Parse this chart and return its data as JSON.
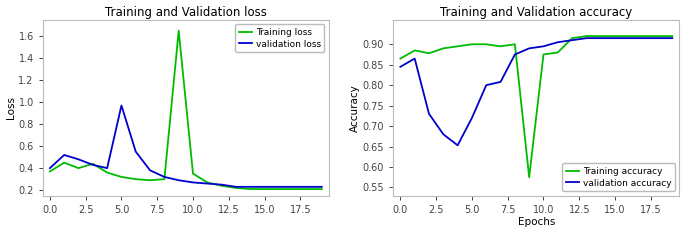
{
  "loss_title": "Training and Validation loss",
  "acc_title": "Training and Validation accuracy",
  "loss_ylabel": "Loss",
  "acc_ylabel": "Accuracy",
  "acc_xlabel": "Epochs",
  "train_loss_label": "Training loss",
  "val_loss_label": "validation loss",
  "train_acc_label": "Training accuracy",
  "val_acc_label": "validation accuracy",
  "train_loss_color": "#00bb00",
  "val_loss_color": "#0000cc",
  "train_acc_color": "#00bb00",
  "val_acc_color": "#0000cc",
  "epochs": [
    0,
    1,
    2,
    3,
    4,
    5,
    6,
    7,
    8,
    9,
    10,
    11,
    12,
    13,
    14,
    15,
    16,
    17,
    18,
    19
  ],
  "train_loss": [
    0.37,
    0.45,
    0.4,
    0.44,
    0.36,
    0.32,
    0.3,
    0.29,
    0.3,
    1.65,
    0.35,
    0.27,
    0.24,
    0.22,
    0.21,
    0.21,
    0.21,
    0.21,
    0.21,
    0.21
  ],
  "val_loss": [
    0.4,
    0.52,
    0.48,
    0.43,
    0.4,
    0.97,
    0.55,
    0.38,
    0.32,
    0.29,
    0.27,
    0.26,
    0.25,
    0.23,
    0.23,
    0.23,
    0.23,
    0.23,
    0.23,
    0.23
  ],
  "train_acc": [
    0.865,
    0.885,
    0.878,
    0.89,
    0.895,
    0.9,
    0.9,
    0.895,
    0.9,
    0.575,
    0.875,
    0.88,
    0.915,
    0.92,
    0.92,
    0.92,
    0.92,
    0.92,
    0.92,
    0.92
  ],
  "val_acc": [
    0.845,
    0.865,
    0.73,
    0.68,
    0.653,
    0.72,
    0.8,
    0.808,
    0.875,
    0.89,
    0.895,
    0.905,
    0.91,
    0.915,
    0.915,
    0.915,
    0.915,
    0.915,
    0.915,
    0.915
  ],
  "loss_ylim": [
    0.15,
    1.75
  ],
  "acc_ylim": [
    0.53,
    0.96
  ],
  "loss_yticks": [
    0.2,
    0.4,
    0.6,
    0.8,
    1.0,
    1.2,
    1.4,
    1.6
  ],
  "acc_yticks": [
    0.55,
    0.6,
    0.65,
    0.7,
    0.75,
    0.8,
    0.85,
    0.9
  ],
  "xticks": [
    0.0,
    2.5,
    5.0,
    7.5,
    10.0,
    12.5,
    15.0,
    17.5
  ],
  "xlim": [
    -0.5,
    19.5
  ],
  "fig_width": 6.85,
  "fig_height": 2.33,
  "dpi": 100,
  "title_fontsize": 8.5,
  "label_fontsize": 7.5,
  "tick_fontsize": 7,
  "legend_fontsize": 6.5,
  "linewidth": 1.3
}
